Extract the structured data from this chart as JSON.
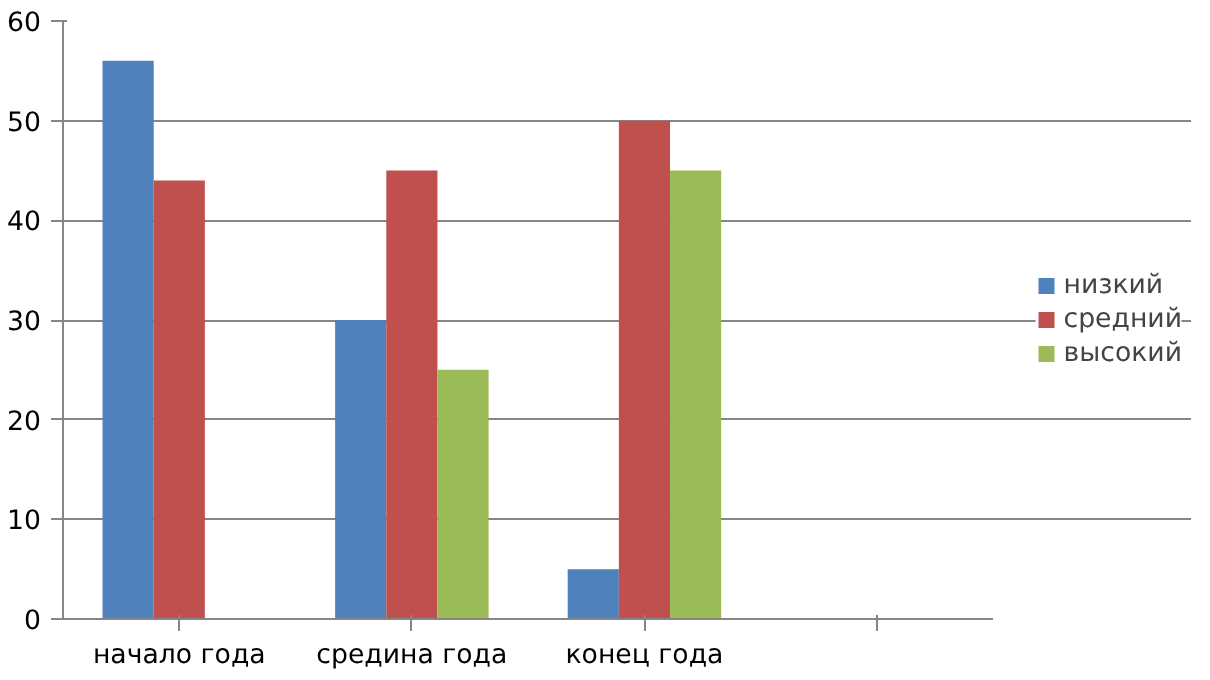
{
  "chart_data": {
    "type": "bar",
    "categories": [
      "начало года",
      "средина года",
      "конец года",
      null
    ],
    "series": [
      {
        "name": "низкий",
        "color": "#4f81bd",
        "values": [
          56,
          30,
          5,
          null
        ]
      },
      {
        "name": "средний",
        "color": "#c0504d",
        "values": [
          44,
          45,
          50,
          null
        ]
      },
      {
        "name": "высокий",
        "color": "#9bbb59",
        "values": [
          null,
          25,
          45,
          null
        ]
      }
    ],
    "ylim": [
      0,
      60
    ],
    "yticks": [
      0,
      10,
      20,
      30,
      40,
      50,
      60
    ],
    "grid": "y",
    "legend": "right"
  }
}
